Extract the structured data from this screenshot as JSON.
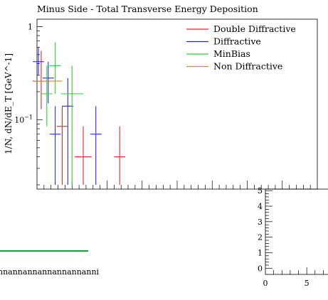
{
  "chart_data": [
    {
      "type": "scatter",
      "title": "Minus Side - Total Transverse Energy Deposition",
      "ylabel": "1/N, dN/dE_T [GeV^-1]",
      "yscale": "log",
      "ylim": [
        0.018,
        1.2
      ],
      "xlim": [
        0,
        100
      ],
      "y_ticks": [
        {
          "value": 1,
          "label": "1"
        },
        {
          "value": 0.1,
          "label": "10^-1"
        }
      ],
      "legend_position": "top-right",
      "series": [
        {
          "name": "Double Diffractive",
          "color": "#e8262a",
          "points": [
            {
              "x": 1.5,
              "xerr": 3,
              "y": 0.26,
              "ylo": 0.13,
              "yhi": 0.55
            },
            {
              "x": 9,
              "xerr": 2,
              "y": 0.085,
              "ylo": 0.02,
              "yhi": 0.14
            },
            {
              "x": 16.5,
              "xerr": 3,
              "y": 0.04,
              "ylo": 0.02,
              "yhi": 0.085
            },
            {
              "x": 29.5,
              "xerr": 2,
              "y": 0.04,
              "ylo": 0.02,
              "yhi": 0.085
            }
          ]
        },
        {
          "name": "Diffractive",
          "color": "#2b2bd4",
          "points": [
            {
              "x": 0.5,
              "xerr": 2,
              "y": 0.42,
              "ylo": 0.3,
              "yhi": 0.6
            },
            {
              "x": 4,
              "xerr": 2,
              "y": 0.28,
              "ylo": 0.15,
              "yhi": 0.42
            },
            {
              "x": 6.5,
              "xerr": 2,
              "y": 0.07,
              "ylo": 0.02,
              "yhi": 0.14
            },
            {
              "x": 11,
              "xerr": 2,
              "y": 0.14,
              "ylo": 0.02,
              "yhi": 0.28
            },
            {
              "x": 21,
              "xerr": 2,
              "y": 0.07,
              "ylo": 0.02,
              "yhi": 0.14
            }
          ]
        },
        {
          "name": "MinBias",
          "color": "#2fd12f",
          "points": [
            {
              "x": 3.5,
              "xerr": 2,
              "y": 0.19,
              "ylo": 0.085,
              "yhi": 0.38
            },
            {
              "x": 6.5,
              "xerr": 2,
              "y": 0.38,
              "ylo": 0.19,
              "yhi": 0.68
            },
            {
              "x": 12.5,
              "xerr": 4,
              "y": 0.19,
              "ylo": 0.02,
              "yhi": 0.38
            }
          ]
        },
        {
          "name": "Non Diffractive",
          "color": "#d88a22",
          "points": [
            {
              "x": 4,
              "xerr": 5,
              "y": 0.26,
              "ylo": 0.26,
              "yhi": 0.26
            }
          ]
        }
      ]
    },
    {
      "type": "line",
      "title": "",
      "x_ticks": [
        {
          "value": 0,
          "label": "0"
        },
        {
          "value": 5,
          "label": "5"
        }
      ],
      "y_ticks": [
        {
          "value": 0,
          "label": "0"
        },
        {
          "value": 1,
          "label": "1"
        },
        {
          "value": 2,
          "label": "2"
        },
        {
          "value": 3,
          "label": "3"
        },
        {
          "value": 4,
          "label": "4"
        },
        {
          "value": 5,
          "label": "5"
        }
      ],
      "xlim": [
        0,
        8.6
      ],
      "ylim": [
        -0.4,
        5.1
      ],
      "series": []
    }
  ],
  "stray": {
    "line_color": "#1a9a3a",
    "text": "nnannannannannannanni"
  }
}
